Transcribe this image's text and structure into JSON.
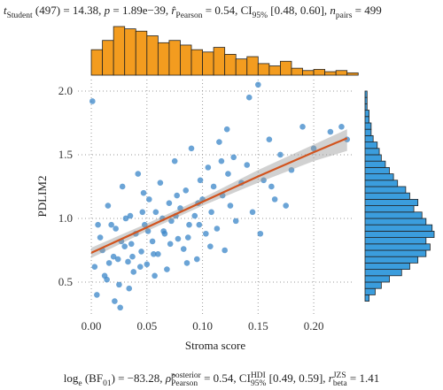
{
  "chart_data": {
    "type": "scatter",
    "subtitle": [
      {
        "text": "t",
        "italic": true
      },
      {
        "text": "Student",
        "shift": "sub"
      },
      {
        "text": " (497) = 14.38, "
      },
      {
        "text": "p",
        "italic": true
      },
      {
        "text": " = 1.89e−39, "
      },
      {
        "text": "r̂",
        "italic": true
      },
      {
        "text": "Pearson",
        "shift": "sub"
      },
      {
        "text": " = 0.54, CI"
      },
      {
        "text": "95%",
        "shift": "sub"
      },
      {
        "text": " [0.48, 0.60], "
      },
      {
        "text": "n",
        "italic": true
      },
      {
        "text": "pairs",
        "shift": "sub"
      },
      {
        "text": " = 499"
      }
    ],
    "caption": [
      {
        "text": "log"
      },
      {
        "text": "e",
        "shift": "sub"
      },
      {
        "text": " (BF"
      },
      {
        "text": "01",
        "shift": "sub"
      },
      {
        "text": ") = −83.28, "
      },
      {
        "text": "ρ̂",
        "italic": true
      },
      {
        "text": "posterior",
        "shift": "sup"
      },
      {
        "text": "Pearson",
        "shift": "sub",
        "stack": true
      },
      {
        "text": " = 0.54, CI"
      },
      {
        "text": "HDI",
        "shift": "sup"
      },
      {
        "text": "95%",
        "shift": "sub",
        "stack": true
      },
      {
        "text": " [0.49, 0.59], "
      },
      {
        "text": "r",
        "italic": true
      },
      {
        "text": "JZS",
        "shift": "sup"
      },
      {
        "text": "beta",
        "shift": "sub",
        "stack": true
      },
      {
        "text": " = 1.41"
      }
    ],
    "x_label": "Stroma score",
    "y_label": "PDLIM2",
    "xlim": [
      -0.012,
      0.235
    ],
    "ylim": [
      0.25,
      2.09
    ],
    "xticks": [
      {
        "value": 0,
        "label": "0.00"
      },
      {
        "value": 0.05,
        "label": "0.05"
      },
      {
        "value": 0.1,
        "label": "0.10"
      },
      {
        "value": 0.15,
        "label": "0.15"
      },
      {
        "value": 0.2,
        "label": "0.20"
      }
    ],
    "yticks": [
      0.5,
      {
        "value": 1,
        "label": "1.0"
      },
      1.5,
      {
        "value": 2,
        "label": "2.0"
      }
    ],
    "grid": true,
    "color": "#3a86c8",
    "x": [
      0.003,
      0.008,
      0.012,
      0.015,
      0.02,
      0.022,
      0.025,
      0.028,
      0.03,
      0.033,
      0.035,
      0.038,
      0.04,
      0.042,
      0.045,
      0.048,
      0.05,
      0.052,
      0.055,
      0.058,
      0.06,
      0.062,
      0.065,
      0.068,
      0.07,
      0.072,
      0.075,
      0.078,
      0.08,
      0.083,
      0.085,
      0.088,
      0.09,
      0.093,
      0.095,
      0.098,
      0.1,
      0.103,
      0.105,
      0.108,
      0.11,
      0.113,
      0.115,
      0.118,
      0.12,
      0.123,
      0.125,
      0.128,
      0.13,
      0.135,
      0.14,
      0.145,
      0.15,
      0.155,
      0.16,
      0.165,
      0.17,
      0.18,
      0.19,
      0.2,
      0.001,
      0.005,
      0.01,
      0.014,
      0.018,
      0.021,
      0.024,
      0.027,
      0.031,
      0.034,
      0.037,
      0.044,
      0.047,
      0.051,
      0.057,
      0.064,
      0.071,
      0.077,
      0.087,
      0.097,
      0.107,
      0.117,
      0.122,
      0.142,
      0.152,
      0.162,
      0.175,
      0.215,
      0.225,
      0.23,
      0.006,
      0.016,
      0.026,
      0.036,
      0.046,
      0.056,
      0.066,
      0.076,
      0.086,
      0.096
    ],
    "values": [
      0.62,
      0.85,
      0.55,
      1.1,
      0.7,
      0.92,
      0.48,
      1.25,
      0.78,
      0.66,
      1.02,
      0.58,
      0.88,
      1.35,
      0.74,
      0.95,
      0.64,
      1.15,
      0.82,
      1.05,
      0.72,
      1.28,
      0.9,
      0.6,
      1.12,
      0.98,
      1.45,
      0.84,
      1.08,
      0.76,
      1.22,
      0.95,
      1.55,
      1.02,
      0.68,
      1.3,
      1.15,
      0.88,
      1.4,
      1.05,
      1.25,
      0.92,
      1.6,
      1.18,
      0.75,
      1.35,
      1.1,
      1.48,
      0.98,
      1.28,
      1.42,
      1.05,
      2.05,
      1.3,
      1.62,
      1.15,
      1.5,
      1.38,
      1.72,
      1.55,
      1.92,
      0.4,
      0.75,
      0.52,
      0.95,
      0.35,
      0.68,
      0.82,
      1.0,
      0.45,
      0.7,
      0.62,
      1.2,
      0.9,
      0.55,
      1.0,
      0.8,
      1.18,
      0.85,
      0.95,
      0.78,
      1.45,
      1.7,
      1.95,
      0.88,
      1.25,
      1.1,
      1.68,
      1.72,
      1.62,
      0.95,
      0.65,
      0.3,
      0.8,
      1.05,
      0.72,
      0.88,
      1.02,
      0.65,
      1.12
    ],
    "fit": {
      "color": "#d2541e",
      "x": [
        0,
        0.05,
        0.1,
        0.15,
        0.2,
        0.23
      ],
      "values": [
        0.73,
        0.93,
        1.13,
        1.33,
        1.52,
        1.63
      ],
      "lower": [
        0.69,
        0.9,
        1.1,
        1.28,
        1.45,
        1.53
      ],
      "upper": [
        0.77,
        0.96,
        1.16,
        1.38,
        1.58,
        1.7
      ]
    },
    "x_histogram": {
      "color": "#f39c1f",
      "bins": [
        0,
        0.01,
        0.02,
        0.03,
        0.04,
        0.05,
        0.06,
        0.07,
        0.08,
        0.09,
        0.1,
        0.11,
        0.12,
        0.13,
        0.14,
        0.15,
        0.16,
        0.17,
        0.18,
        0.19,
        0.2,
        0.21,
        0.22,
        0.23,
        0.24
      ],
      "values": [
        22,
        30,
        42,
        40,
        38,
        34,
        28,
        30,
        26,
        22,
        20,
        24,
        18,
        14,
        16,
        10,
        8,
        12,
        6,
        4,
        5,
        3,
        4,
        2
      ]
    },
    "y_histogram": {
      "color": "#3b9ddd",
      "bins": [
        0.35,
        0.4,
        0.45,
        0.5,
        0.55,
        0.6,
        0.65,
        0.7,
        0.75,
        0.8,
        0.85,
        0.9,
        0.95,
        1.0,
        1.05,
        1.1,
        1.15,
        1.2,
        1.25,
        1.3,
        1.35,
        1.4,
        1.45,
        1.5,
        1.55,
        1.6,
        1.65,
        1.7,
        1.75,
        1.8,
        1.85,
        1.9,
        1.95,
        2.0
      ],
      "values": [
        2,
        5,
        8,
        12,
        18,
        22,
        26,
        30,
        32,
        30,
        34,
        33,
        30,
        28,
        24,
        26,
        22,
        20,
        16,
        14,
        12,
        10,
        8,
        7,
        6,
        4,
        3,
        3,
        2,
        2,
        1,
        1,
        1
      ]
    }
  }
}
